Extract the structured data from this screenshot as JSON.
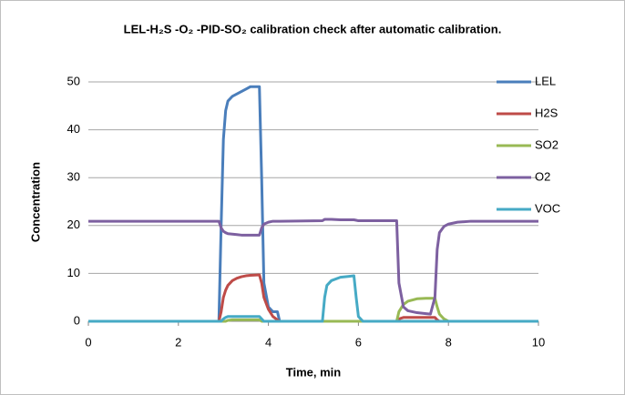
{
  "chart_data": {
    "type": "line",
    "title": "LEL-H₂S -O₂ -PID-SO₂  calibration check after automatic calibration.",
    "x_label": "Time, min",
    "y_label": "Concentration",
    "x": [
      0,
      2.9,
      2.95,
      3.0,
      3.05,
      3.1,
      3.2,
      3.3,
      3.4,
      3.5,
      3.6,
      3.8,
      3.85,
      3.9,
      4.0,
      4.1,
      4.2,
      4.25,
      5.2,
      5.25,
      5.3,
      5.4,
      5.6,
      5.9,
      5.95,
      6.0,
      6.1,
      6.85,
      6.9,
      7.0,
      7.1,
      7.3,
      7.5,
      7.6,
      7.7,
      7.75,
      7.8,
      7.9,
      8.0,
      8.2,
      8.5,
      10
    ],
    "series": [
      {
        "name": "LEL",
        "color": "#4a7ebb",
        "values": [
          0,
          0,
          20,
          38,
          44,
          46,
          47,
          47.5,
          48,
          48.5,
          49,
          49,
          30,
          8,
          3,
          2,
          2,
          0,
          0,
          0,
          0,
          0,
          0,
          0,
          0,
          0,
          0,
          0,
          0,
          0,
          0,
          0,
          0,
          0,
          0,
          0,
          0,
          0,
          0,
          0,
          0,
          0
        ]
      },
      {
        "name": "H2S",
        "color": "#be4b48",
        "values": [
          0,
          0,
          2,
          5,
          6.5,
          7.5,
          8.5,
          9,
          9.3,
          9.5,
          9.6,
          9.7,
          8,
          5,
          2.5,
          1,
          0.3,
          0,
          0,
          0,
          0,
          0,
          0,
          0,
          0,
          0,
          0,
          0,
          0.5,
          0.8,
          0.8,
          0.8,
          0.8,
          0.8,
          0.8,
          0.3,
          0,
          0,
          0,
          0,
          0,
          0
        ]
      },
      {
        "name": "SO2",
        "color": "#98b954",
        "values": [
          0,
          0,
          0,
          0,
          0,
          0.2,
          0.3,
          0.3,
          0.3,
          0.3,
          0.3,
          0.3,
          0,
          0,
          0,
          0,
          0,
          0,
          0,
          0,
          0,
          0,
          0,
          0,
          0,
          0,
          0,
          0,
          2,
          3.5,
          4.2,
          4.7,
          4.8,
          4.8,
          4.8,
          3,
          1.5,
          0.5,
          0,
          0,
          0,
          0
        ]
      },
      {
        "name": "O2",
        "color": "#7d60a0",
        "values": [
          20.9,
          20.9,
          19.5,
          18.8,
          18.5,
          18.3,
          18.2,
          18.1,
          18,
          18,
          18,
          18,
          19.5,
          20.3,
          20.7,
          20.9,
          20.9,
          20.9,
          21,
          21.3,
          21.3,
          21.3,
          21.2,
          21.2,
          21.1,
          21,
          21,
          21,
          8,
          3,
          2.2,
          1.8,
          1.6,
          1.5,
          5,
          15,
          18.5,
          19.8,
          20.3,
          20.7,
          20.9,
          20.9
        ]
      },
      {
        "name": "VOC",
        "color": "#46aac5",
        "values": [
          0,
          0,
          0,
          0.5,
          0.8,
          1,
          1,
          1,
          1,
          1,
          1,
          1,
          0.5,
          0,
          0,
          0,
          0,
          0,
          0,
          5,
          7.5,
          8.5,
          9.2,
          9.5,
          5,
          1,
          0,
          0,
          0,
          0,
          0,
          0,
          0,
          0,
          0,
          0,
          0,
          0,
          0,
          0,
          0,
          0
        ]
      }
    ],
    "xlim": [
      0,
      10
    ],
    "xticks": [
      0,
      2,
      4,
      6,
      8,
      10
    ],
    "ylim": [
      0,
      50
    ],
    "yticks": [
      0,
      10,
      20,
      30,
      40,
      50
    ],
    "grid": true,
    "legend": "right"
  }
}
